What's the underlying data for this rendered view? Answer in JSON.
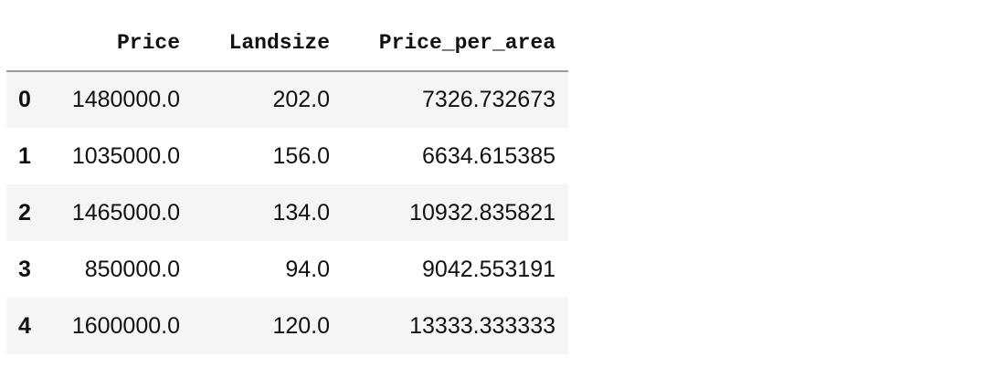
{
  "table": {
    "columns": [
      "Price",
      "Landsize",
      "Price_per_area"
    ],
    "rows": [
      {
        "index": "0",
        "price": "1480000.0",
        "landsize": "202.0",
        "price_per_area": "7326.732673"
      },
      {
        "index": "1",
        "price": "1035000.0",
        "landsize": "156.0",
        "price_per_area": "6634.615385"
      },
      {
        "index": "2",
        "price": "1465000.0",
        "landsize": "134.0",
        "price_per_area": "10932.835821"
      },
      {
        "index": "3",
        "price": "850000.0",
        "landsize": "94.0",
        "price_per_area": "9042.553191"
      },
      {
        "index": "4",
        "price": "1600000.0",
        "landsize": "120.0",
        "price_per_area": "13333.333333"
      }
    ]
  }
}
